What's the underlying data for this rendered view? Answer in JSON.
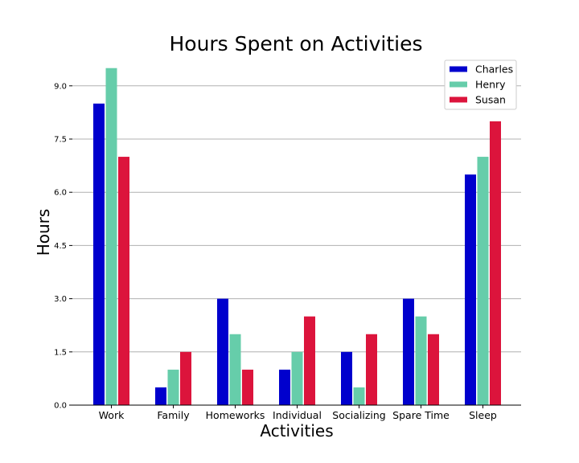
{
  "chart_data": {
    "type": "bar",
    "title": "Hours Spent on Activities",
    "xlabel": "Activities",
    "ylabel": "Hours",
    "categories": [
      "Work",
      "Family",
      "Homeworks",
      "Individual",
      "Socializing",
      "Spare Time",
      "Sleep"
    ],
    "series": [
      {
        "name": "Charles",
        "color": "#0000cd",
        "values": [
          8.5,
          0.5,
          3.0,
          1.0,
          1.5,
          3.0,
          6.5
        ]
      },
      {
        "name": "Henry",
        "color": "#66cdaa",
        "values": [
          9.5,
          1.0,
          2.0,
          1.5,
          0.5,
          2.5,
          7.0
        ]
      },
      {
        "name": "Susan",
        "color": "#dc143c",
        "values": [
          7.0,
          1.5,
          1.0,
          2.5,
          2.0,
          2.0,
          8.0
        ]
      }
    ],
    "yticks": [
      "0.0",
      "1.5",
      "3.0",
      "4.5",
      "6.0",
      "7.5",
      "9.0"
    ],
    "ylim": [
      0,
      10.4
    ],
    "grid": "horizontal",
    "legend_position": "top-right"
  }
}
